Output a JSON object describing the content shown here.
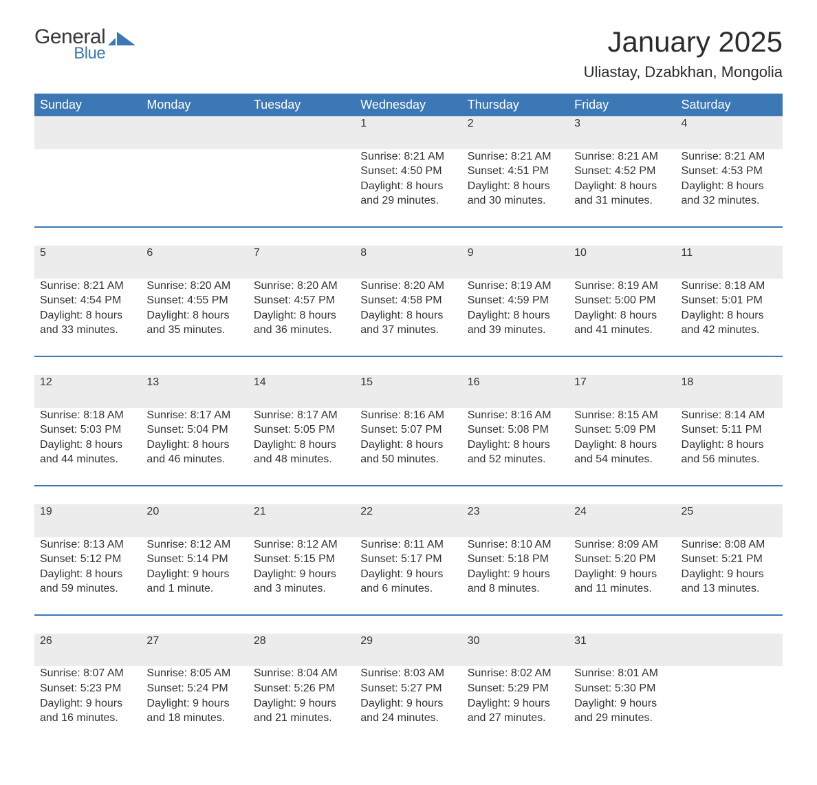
{
  "brand": {
    "name_part1": "General",
    "name_part2": "Blue",
    "color_primary": "#3b78b5",
    "color_text_dark": "#3a3a3a"
  },
  "header": {
    "title": "January 2025",
    "location": "Uliastay, Dzabkhan, Mongolia"
  },
  "calendar": {
    "type": "table",
    "accent_color": "#3b78b5",
    "daynum_bg": "#ececec",
    "header_text_color": "#ffffff",
    "text_color": "#333333",
    "font_family": "Arial",
    "header_fontsize_pt": 13,
    "cell_fontsize_pt": 12,
    "columns": [
      "Sunday",
      "Monday",
      "Tuesday",
      "Wednesday",
      "Thursday",
      "Friday",
      "Saturday"
    ],
    "labels": {
      "sunrise": "Sunrise:",
      "sunset": "Sunset:",
      "daylight": "Daylight:"
    },
    "weeks": [
      [
        null,
        null,
        null,
        {
          "day": "1",
          "sunrise": "8:21 AM",
          "sunset": "4:50 PM",
          "daylight": "8 hours and 29 minutes."
        },
        {
          "day": "2",
          "sunrise": "8:21 AM",
          "sunset": "4:51 PM",
          "daylight": "8 hours and 30 minutes."
        },
        {
          "day": "3",
          "sunrise": "8:21 AM",
          "sunset": "4:52 PM",
          "daylight": "8 hours and 31 minutes."
        },
        {
          "day": "4",
          "sunrise": "8:21 AM",
          "sunset": "4:53 PM",
          "daylight": "8 hours and 32 minutes."
        }
      ],
      [
        {
          "day": "5",
          "sunrise": "8:21 AM",
          "sunset": "4:54 PM",
          "daylight": "8 hours and 33 minutes."
        },
        {
          "day": "6",
          "sunrise": "8:20 AM",
          "sunset": "4:55 PM",
          "daylight": "8 hours and 35 minutes."
        },
        {
          "day": "7",
          "sunrise": "8:20 AM",
          "sunset": "4:57 PM",
          "daylight": "8 hours and 36 minutes."
        },
        {
          "day": "8",
          "sunrise": "8:20 AM",
          "sunset": "4:58 PM",
          "daylight": "8 hours and 37 minutes."
        },
        {
          "day": "9",
          "sunrise": "8:19 AM",
          "sunset": "4:59 PM",
          "daylight": "8 hours and 39 minutes."
        },
        {
          "day": "10",
          "sunrise": "8:19 AM",
          "sunset": "5:00 PM",
          "daylight": "8 hours and 41 minutes."
        },
        {
          "day": "11",
          "sunrise": "8:18 AM",
          "sunset": "5:01 PM",
          "daylight": "8 hours and 42 minutes."
        }
      ],
      [
        {
          "day": "12",
          "sunrise": "8:18 AM",
          "sunset": "5:03 PM",
          "daylight": "8 hours and 44 minutes."
        },
        {
          "day": "13",
          "sunrise": "8:17 AM",
          "sunset": "5:04 PM",
          "daylight": "8 hours and 46 minutes."
        },
        {
          "day": "14",
          "sunrise": "8:17 AM",
          "sunset": "5:05 PM",
          "daylight": "8 hours and 48 minutes."
        },
        {
          "day": "15",
          "sunrise": "8:16 AM",
          "sunset": "5:07 PM",
          "daylight": "8 hours and 50 minutes."
        },
        {
          "day": "16",
          "sunrise": "8:16 AM",
          "sunset": "5:08 PM",
          "daylight": "8 hours and 52 minutes."
        },
        {
          "day": "17",
          "sunrise": "8:15 AM",
          "sunset": "5:09 PM",
          "daylight": "8 hours and 54 minutes."
        },
        {
          "day": "18",
          "sunrise": "8:14 AM",
          "sunset": "5:11 PM",
          "daylight": "8 hours and 56 minutes."
        }
      ],
      [
        {
          "day": "19",
          "sunrise": "8:13 AM",
          "sunset": "5:12 PM",
          "daylight": "8 hours and 59 minutes."
        },
        {
          "day": "20",
          "sunrise": "8:12 AM",
          "sunset": "5:14 PM",
          "daylight": "9 hours and 1 minute."
        },
        {
          "day": "21",
          "sunrise": "8:12 AM",
          "sunset": "5:15 PM",
          "daylight": "9 hours and 3 minutes."
        },
        {
          "day": "22",
          "sunrise": "8:11 AM",
          "sunset": "5:17 PM",
          "daylight": "9 hours and 6 minutes."
        },
        {
          "day": "23",
          "sunrise": "8:10 AM",
          "sunset": "5:18 PM",
          "daylight": "9 hours and 8 minutes."
        },
        {
          "day": "24",
          "sunrise": "8:09 AM",
          "sunset": "5:20 PM",
          "daylight": "9 hours and 11 minutes."
        },
        {
          "day": "25",
          "sunrise": "8:08 AM",
          "sunset": "5:21 PM",
          "daylight": "9 hours and 13 minutes."
        }
      ],
      [
        {
          "day": "26",
          "sunrise": "8:07 AM",
          "sunset": "5:23 PM",
          "daylight": "9 hours and 16 minutes."
        },
        {
          "day": "27",
          "sunrise": "8:05 AM",
          "sunset": "5:24 PM",
          "daylight": "9 hours and 18 minutes."
        },
        {
          "day": "28",
          "sunrise": "8:04 AM",
          "sunset": "5:26 PM",
          "daylight": "9 hours and 21 minutes."
        },
        {
          "day": "29",
          "sunrise": "8:03 AM",
          "sunset": "5:27 PM",
          "daylight": "9 hours and 24 minutes."
        },
        {
          "day": "30",
          "sunrise": "8:02 AM",
          "sunset": "5:29 PM",
          "daylight": "9 hours and 27 minutes."
        },
        {
          "day": "31",
          "sunrise": "8:01 AM",
          "sunset": "5:30 PM",
          "daylight": "9 hours and 29 minutes."
        },
        null
      ]
    ]
  }
}
